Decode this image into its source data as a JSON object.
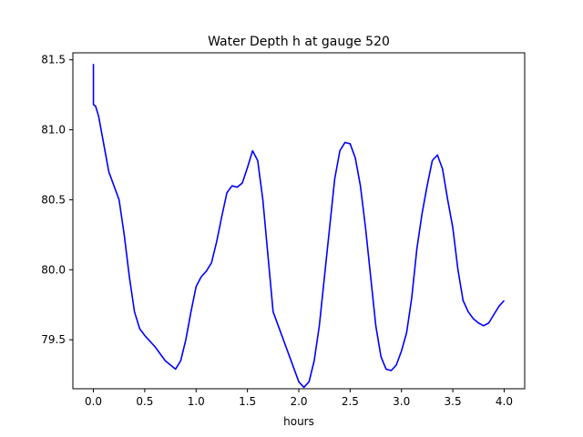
{
  "chart_data": {
    "type": "line",
    "title": "Water Depth h at gauge 520",
    "xlabel": "hours",
    "ylabel": "",
    "xlim": [
      -0.2,
      4.2
    ],
    "ylim": [
      79.15,
      81.55
    ],
    "xticks": [
      0.0,
      0.5,
      1.0,
      1.5,
      2.0,
      2.5,
      3.0,
      3.5,
      4.0
    ],
    "xtick_labels": [
      "0.0",
      "0.5",
      "1.0",
      "1.5",
      "2.0",
      "2.5",
      "3.0",
      "3.5",
      "4.0"
    ],
    "yticks": [
      79.5,
      80.0,
      80.5,
      81.0,
      81.5
    ],
    "ytick_labels": [
      "79.5",
      "80.0",
      "80.5",
      "81.0",
      "81.5"
    ],
    "grid": false,
    "series": [
      {
        "color": "#0000ff",
        "x": [
          0.0,
          0.0,
          0.02,
          0.05,
          0.1,
          0.15,
          0.2,
          0.25,
          0.3,
          0.35,
          0.4,
          0.45,
          0.5,
          0.6,
          0.7,
          0.8,
          0.85,
          0.9,
          0.95,
          1.0,
          1.05,
          1.1,
          1.15,
          1.2,
          1.25,
          1.3,
          1.35,
          1.4,
          1.45,
          1.5,
          1.55,
          1.6,
          1.65,
          1.7,
          1.75,
          1.8,
          1.85,
          1.9,
          2.0,
          2.05,
          2.1,
          2.15,
          2.2,
          2.25,
          2.3,
          2.35,
          2.4,
          2.45,
          2.5,
          2.55,
          2.6,
          2.65,
          2.7,
          2.75,
          2.8,
          2.85,
          2.9,
          2.95,
          3.0,
          3.05,
          3.1,
          3.15,
          3.2,
          3.25,
          3.3,
          3.35,
          3.4,
          3.45,
          3.5,
          3.55,
          3.6,
          3.65,
          3.7,
          3.75,
          3.8,
          3.85,
          3.9,
          3.95,
          4.0
        ],
        "y": [
          81.47,
          81.18,
          81.17,
          81.1,
          80.9,
          80.7,
          80.6,
          80.5,
          80.25,
          79.95,
          79.7,
          79.58,
          79.53,
          79.45,
          79.35,
          79.29,
          79.35,
          79.5,
          79.7,
          79.88,
          79.95,
          79.99,
          80.05,
          80.2,
          80.38,
          80.55,
          80.6,
          80.59,
          80.62,
          80.73,
          80.85,
          80.78,
          80.5,
          80.1,
          79.7,
          79.6,
          79.5,
          79.4,
          79.2,
          79.16,
          79.2,
          79.35,
          79.6,
          79.95,
          80.3,
          80.65,
          80.85,
          80.91,
          80.9,
          80.8,
          80.6,
          80.3,
          79.95,
          79.6,
          79.38,
          79.29,
          79.28,
          79.32,
          79.42,
          79.55,
          79.8,
          80.15,
          80.4,
          80.6,
          80.78,
          80.82,
          80.72,
          80.5,
          80.3,
          80.0,
          79.78,
          79.7,
          79.65,
          79.62,
          79.6,
          79.62,
          79.68,
          79.74,
          79.78
        ]
      }
    ]
  }
}
